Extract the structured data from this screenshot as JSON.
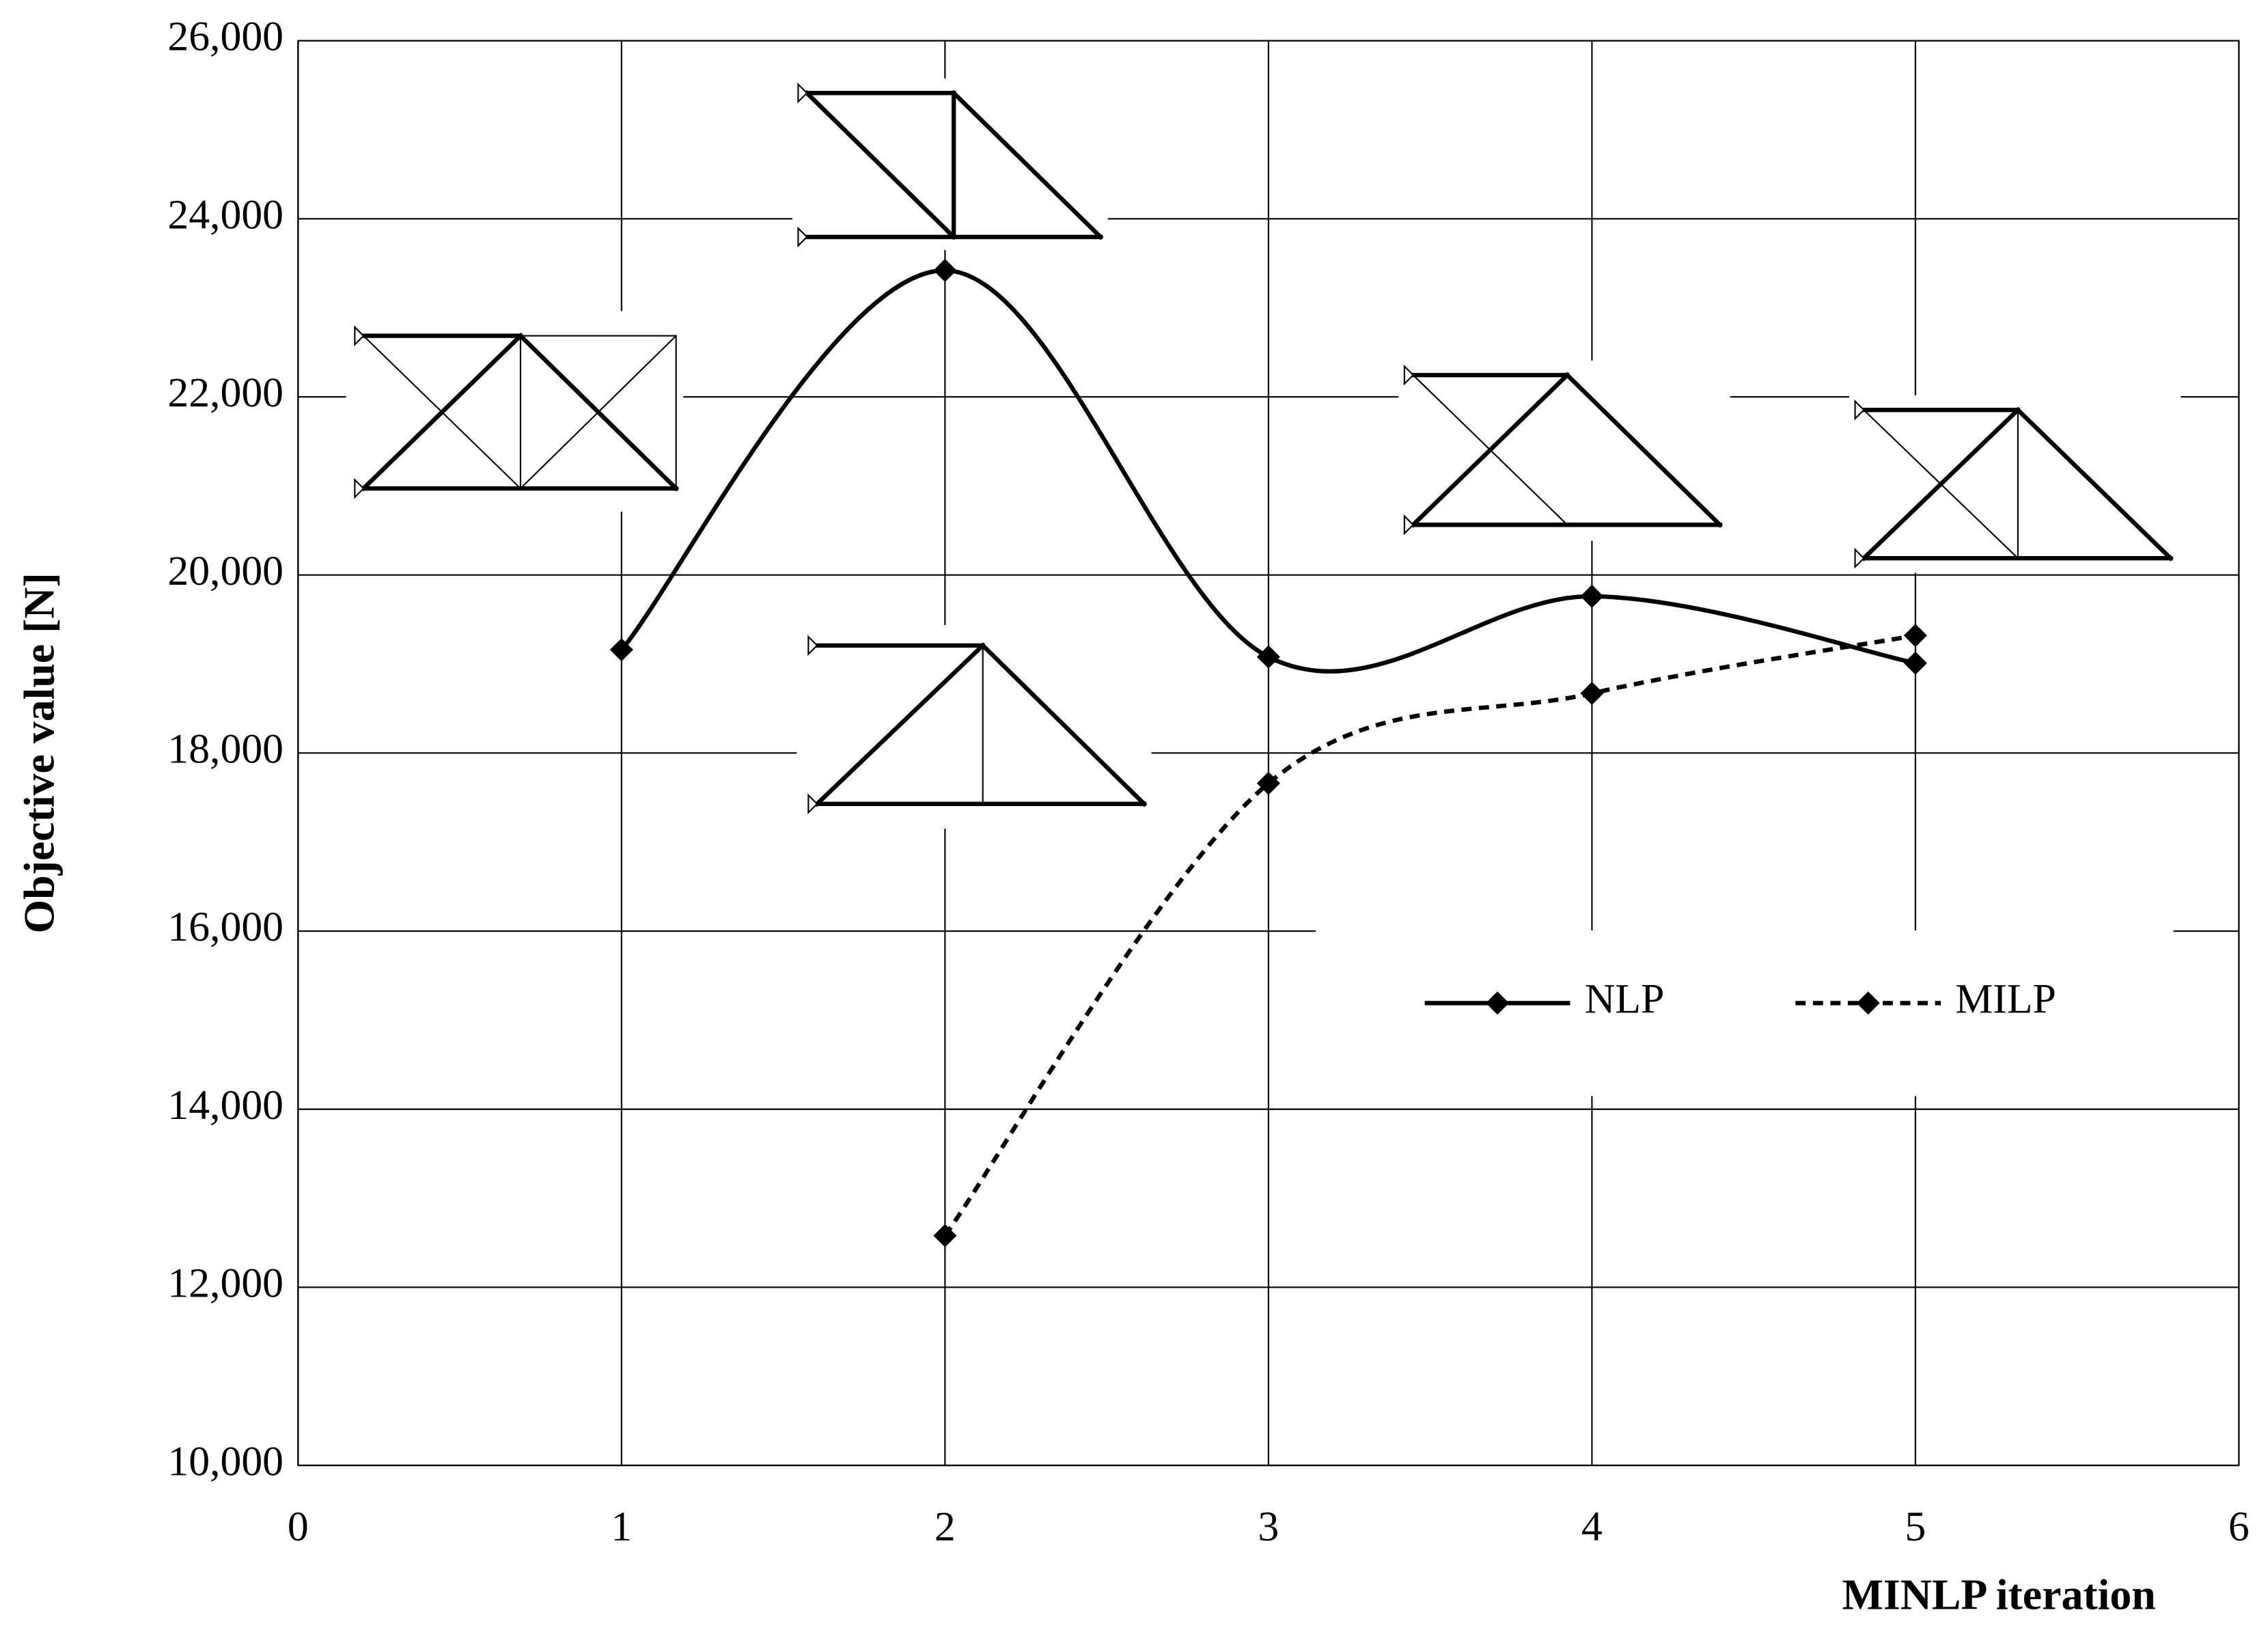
{
  "chart_data": {
    "type": "line",
    "xlabel": "MINLP iteration",
    "ylabel": "Objective value [N]",
    "xlim": [
      0,
      6
    ],
    "xticks": [
      0,
      1,
      2,
      3,
      4,
      5,
      6
    ],
    "ylim": [
      10000,
      26000
    ],
    "yticks": [
      {
        "value": 10000,
        "label": "10,000"
      },
      {
        "value": 12000,
        "label": "12,000"
      },
      {
        "value": 14000,
        "label": "14,000"
      },
      {
        "value": 16000,
        "label": "16,000"
      },
      {
        "value": 18000,
        "label": "18,000"
      },
      {
        "value": 20000,
        "label": "20,000"
      },
      {
        "value": 22000,
        "label": "22,000"
      },
      {
        "value": 24000,
        "label": "24,000"
      },
      {
        "value": 26000,
        "label": "26,000"
      }
    ],
    "grid": true,
    "series": [
      {
        "name": "NLP",
        "color": "#000000",
        "line_style": "solid",
        "x": [
          1,
          2,
          3,
          4,
          5
        ],
        "values": [
          19160,
          23420,
          19080,
          19760,
          19010
        ]
      },
      {
        "name": "MILP",
        "color": "#000000",
        "line_style": "dashed",
        "x": [
          2,
          3,
          4,
          5
        ],
        "values": [
          12580,
          17660,
          18670,
          19320
        ]
      }
    ]
  }
}
